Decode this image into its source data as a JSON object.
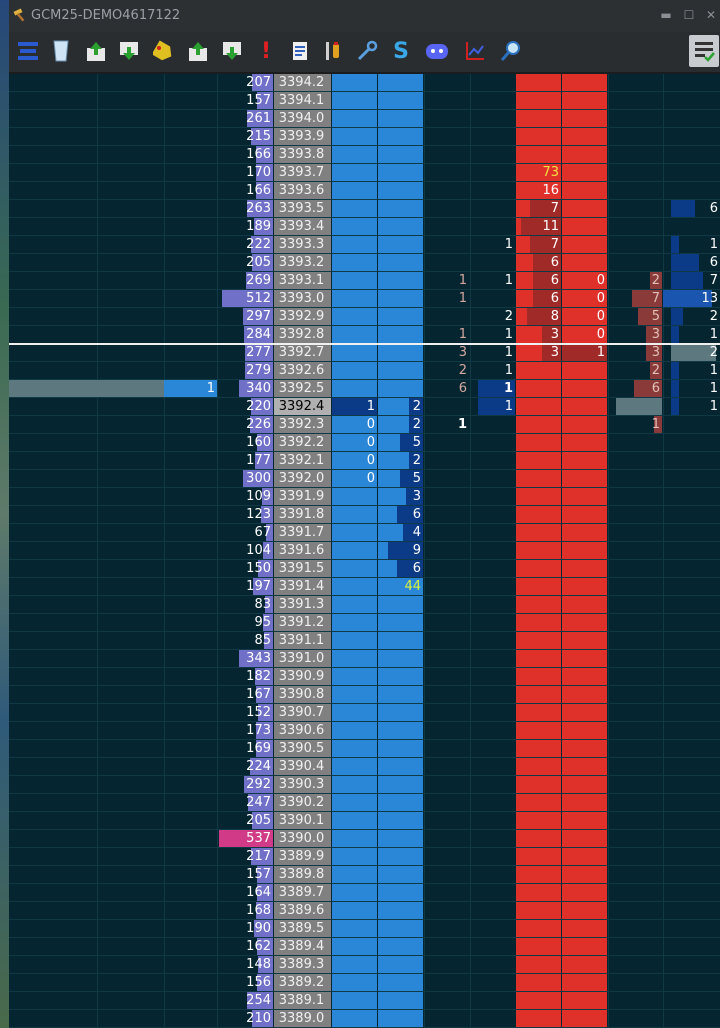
{
  "window": {
    "title": "GCM25-DEMO4617122"
  },
  "toolbar": {
    "icons": [
      "stack-icon",
      "glass-icon",
      "upload-icon",
      "download-icon",
      "tag-icon",
      "upload-icon",
      "download-icon",
      "alert-icon",
      "document-icon",
      "tools-icon",
      "wrench-icon",
      "s-icon",
      "discord-icon",
      "chart-icon",
      "search-icon"
    ],
    "s_label": "S",
    "alert_label": "!",
    "settings_icon": "checklist-icon"
  },
  "colors": {
    "grid_bg": "#052630",
    "bid": "#2a86d6",
    "ask": "#e0302a",
    "volume_bar": "#7474cc",
    "poc": "#d03a86",
    "price_col": "#808080"
  },
  "ladder": {
    "last_price_row": 18,
    "rows": [
      {
        "vol": "207",
        "price": "3394.2"
      },
      {
        "vol": "157",
        "price": "3394.1"
      },
      {
        "vol": "261",
        "price": "3394.0"
      },
      {
        "vol": "215",
        "price": "3393.9"
      },
      {
        "vol": "166",
        "price": "3393.8"
      },
      {
        "vol": "170",
        "price": "3393.7",
        "ask_size": "73"
      },
      {
        "vol": "166",
        "price": "3393.6",
        "ask_size": "16"
      },
      {
        "vol": "263",
        "price": "3393.5",
        "ask_size": "7",
        "right_val": "6"
      },
      {
        "vol": "189",
        "price": "3393.4",
        "ask_size": "11"
      },
      {
        "vol": "222",
        "price": "3393.3",
        "sell_val": "1",
        "ask_size": "7",
        "right_val": "1"
      },
      {
        "vol": "205",
        "price": "3393.2",
        "ask_size": "6",
        "right_val": "6"
      },
      {
        "vol": "269",
        "price": "3393.1",
        "buy_val": "1",
        "sell_val": "1",
        "ask_size": "6",
        "ask2": "0",
        "rhs1": "2",
        "right_val": "7"
      },
      {
        "vol": "512",
        "price": "3393.0",
        "buy_val": "1",
        "ask_size": "6",
        "ask2": "0",
        "rhs1": "7",
        "right_val": "13"
      },
      {
        "vol": "297",
        "price": "3392.9",
        "sell_val": "2",
        "ask_size": "8",
        "ask2": "0",
        "rhs1": "5",
        "right_val": "2"
      },
      {
        "vol": "284",
        "price": "3392.8",
        "buy_val": "1",
        "sell_val": "1",
        "ask_size": "3",
        "ask2": "0",
        "rhs1": "3",
        "right_val": "1"
      },
      {
        "vol": "277",
        "price": "3392.7",
        "buy_val": "3",
        "sell_val": "1",
        "ask_size": "3",
        "ask2": "1",
        "rhs1": "3",
        "right_val": "2"
      },
      {
        "vol": "279",
        "price": "3392.6",
        "buy_val": "2",
        "sell_val": "1",
        "rhs1": "2",
        "right_val": "1"
      },
      {
        "vol": "340",
        "price": "3392.5",
        "left_val": "1",
        "buy_val": "6",
        "sell_val": "1",
        "rhs1": "6",
        "right_val": "1"
      },
      {
        "vol": "220",
        "price": "3392.4",
        "bid_size": "1",
        "bid2": "2",
        "sell_val": "1",
        "right_val": "1"
      },
      {
        "vol": "226",
        "price": "3392.3",
        "bid_size": "0",
        "bid2": "2",
        "buy_val": "1",
        "rhs1": "1"
      },
      {
        "vol": "160",
        "price": "3392.2",
        "bid_size": "0",
        "bid2": "5"
      },
      {
        "vol": "177",
        "price": "3392.1",
        "bid_size": "0",
        "bid2": "2"
      },
      {
        "vol": "300",
        "price": "3392.0",
        "bid_size": "0",
        "bid2": "5"
      },
      {
        "vol": "109",
        "price": "3391.9",
        "bid2": "3"
      },
      {
        "vol": "123",
        "price": "3391.8",
        "bid2": "6"
      },
      {
        "vol": "67",
        "price": "3391.7",
        "bid2": "4"
      },
      {
        "vol": "104",
        "price": "3391.6",
        "bid2": "9"
      },
      {
        "vol": "150",
        "price": "3391.5",
        "bid2": "6"
      },
      {
        "vol": "197",
        "price": "3391.4",
        "bid2": "44"
      },
      {
        "vol": "83",
        "price": "3391.3"
      },
      {
        "vol": "95",
        "price": "3391.2"
      },
      {
        "vol": "85",
        "price": "3391.1"
      },
      {
        "vol": "343",
        "price": "3391.0"
      },
      {
        "vol": "182",
        "price": "3390.9"
      },
      {
        "vol": "167",
        "price": "3390.8"
      },
      {
        "vol": "152",
        "price": "3390.7"
      },
      {
        "vol": "173",
        "price": "3390.6"
      },
      {
        "vol": "169",
        "price": "3390.5"
      },
      {
        "vol": "224",
        "price": "3390.4"
      },
      {
        "vol": "292",
        "price": "3390.3"
      },
      {
        "vol": "247",
        "price": "3390.2"
      },
      {
        "vol": "205",
        "price": "3390.1"
      },
      {
        "vol": "537",
        "price": "3390.0"
      },
      {
        "vol": "217",
        "price": "3389.9"
      },
      {
        "vol": "157",
        "price": "3389.8"
      },
      {
        "vol": "164",
        "price": "3389.7"
      },
      {
        "vol": "168",
        "price": "3389.6"
      },
      {
        "vol": "190",
        "price": "3389.5"
      },
      {
        "vol": "162",
        "price": "3389.4"
      },
      {
        "vol": "148",
        "price": "3389.3"
      },
      {
        "vol": "156",
        "price": "3389.2"
      },
      {
        "vol": "254",
        "price": "3389.1"
      },
      {
        "vol": "210",
        "price": "3389.0"
      }
    ]
  }
}
